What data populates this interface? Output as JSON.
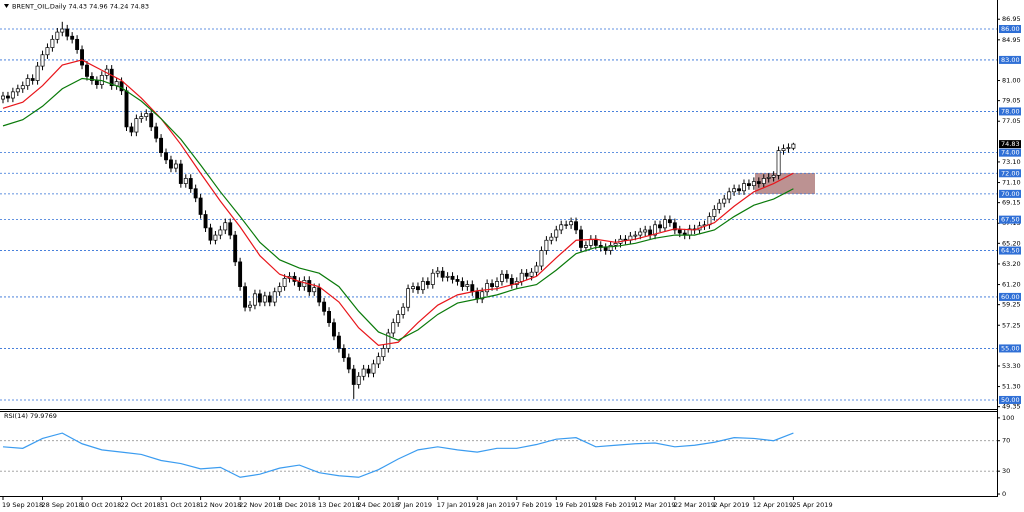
{
  "chart_data": [
    {
      "type": "candlestick",
      "title": "BRENT_OIL,Daily  74.43 74.96 74.24 74.83",
      "categories": [
        "19 Sep 2018",
        null,
        null,
        null,
        null,
        null,
        null,
        null,
        "28 Sep 2018",
        null,
        null,
        null,
        null,
        null,
        null,
        null,
        "10 Oct 2018",
        null,
        null,
        null,
        null,
        null,
        null,
        null,
        "22 Oct 2018",
        null,
        null,
        null,
        null,
        null,
        null,
        null,
        "31 Oct 2018",
        null,
        null,
        null,
        null,
        null,
        null,
        null,
        "12 Nov 2018",
        null,
        null,
        null,
        null,
        null,
        null,
        null,
        "22 Nov 2018",
        null,
        null,
        null,
        null,
        null,
        null,
        null,
        "3 Dec 2018",
        null,
        null,
        null,
        null,
        null,
        null,
        null,
        "13 Dec 2018",
        null,
        null,
        null,
        null,
        null,
        null,
        null,
        "24 Dec 2018",
        null,
        null,
        null,
        null,
        null,
        null,
        null,
        "7 Jan 2019",
        null,
        null,
        null,
        null,
        null,
        null,
        null,
        "17 Jan 2019",
        null,
        null,
        null,
        null,
        null,
        null,
        null,
        "28 Jan 2019",
        null,
        null,
        null,
        null,
        null,
        null,
        null,
        "7 Feb 2019",
        null,
        null,
        null,
        null,
        null,
        null,
        null,
        "19 Feb 2019",
        null,
        null,
        null,
        null,
        null,
        null,
        null,
        "28 Feb 2019",
        null,
        null,
        null,
        null,
        null,
        null,
        null,
        "12 Mar 2019",
        null,
        null,
        null,
        null,
        null,
        null,
        null,
        "22 Mar 2019",
        null,
        null,
        null,
        null,
        null,
        null,
        null,
        "2 Apr 2019",
        null,
        null,
        null,
        null,
        null,
        null,
        null,
        "12 Apr 2019",
        null,
        null,
        null,
        null,
        null,
        null,
        null,
        "25 Apr 2019"
      ],
      "open": [
        79.2,
        79.5,
        79.3,
        79.9,
        80.2,
        80.5,
        81.2,
        81.0,
        82.4,
        83.5,
        84.2,
        85.0,
        85.7,
        86.0,
        85.3,
        85.0,
        84.0,
        82.5,
        81.4,
        81.0,
        80.6,
        81.5,
        82.1,
        80.5,
        80.9,
        80.0,
        76.5,
        76.0,
        77.3,
        77.5,
        77.8,
        76.5,
        75.4,
        74.0,
        73.3,
        72.5,
        72.9,
        71.0,
        71.5,
        70.5,
        69.6,
        68.0,
        66.7,
        65.5,
        66.0,
        66.5,
        67.2,
        66.0,
        63.4,
        61.0,
        59.0,
        59.2,
        60.3,
        59.5,
        60.1,
        59.5,
        60.5,
        61.0,
        61.8,
        62.0,
        61.5,
        61.0,
        61.6,
        60.5,
        60.9,
        59.5,
        58.6,
        57.5,
        56.2,
        55.0,
        54.1,
        53.0,
        51.5,
        52.3,
        53.0,
        52.6,
        53.5,
        54.2,
        55.0,
        56.5,
        57.5,
        58.3,
        59.0,
        60.8,
        61.0,
        60.7,
        61.5,
        61.2,
        62.3,
        62.5,
        61.9,
        62.0,
        61.7,
        61.5,
        61.0,
        61.2,
        60.5,
        59.8,
        60.5,
        61.3,
        61.0,
        61.5,
        62.2,
        61.8,
        61.2,
        61.5,
        62.3,
        62.0,
        62.4,
        63.0,
        64.5,
        65.5,
        65.8,
        66.5,
        67.0,
        67.0,
        67.3,
        66.5,
        64.8,
        65.0,
        65.6,
        65.0,
        64.8,
        64.5,
        65.0,
        65.2,
        65.6,
        65.5,
        65.9,
        66.0,
        66.3,
        66.5,
        66.0,
        67.0,
        66.7,
        67.5,
        67.2,
        66.5,
        66.2,
        66.0,
        66.6,
        66.5,
        66.9,
        67.0,
        67.8,
        68.5,
        69.1,
        69.5,
        70.2,
        70.5,
        70.3,
        71.0,
        70.8,
        71.2,
        71.0,
        71.5,
        71.6,
        71.8,
        74.2,
        74.4,
        74.43
      ],
      "high": [
        79.9,
        79.9,
        80.3,
        80.6,
        80.9,
        81.6,
        81.6,
        82.8,
        83.9,
        84.6,
        85.4,
        86.1,
        86.7,
        86.4,
        85.7,
        85.4,
        84.4,
        82.9,
        81.8,
        81.4,
        81.9,
        82.5,
        82.5,
        81.3,
        81.3,
        80.4,
        76.9,
        77.7,
        77.9,
        78.2,
        78.2,
        76.9,
        75.8,
        74.4,
        73.7,
        73.3,
        73.3,
        71.9,
        71.9,
        70.9,
        70.0,
        68.4,
        67.1,
        66.4,
        66.9,
        67.6,
        67.6,
        66.4,
        63.8,
        61.4,
        59.6,
        60.7,
        60.7,
        60.5,
        60.5,
        60.9,
        61.4,
        62.2,
        62.4,
        62.4,
        61.9,
        62.0,
        62.0,
        61.3,
        61.3,
        59.9,
        59.0,
        57.9,
        56.6,
        55.4,
        54.5,
        53.4,
        52.7,
        53.4,
        53.4,
        53.9,
        54.6,
        55.4,
        56.9,
        57.9,
        58.7,
        59.4,
        61.2,
        61.4,
        61.4,
        61.9,
        61.9,
        62.7,
        62.9,
        62.9,
        62.4,
        62.4,
        62.1,
        61.9,
        61.6,
        61.6,
        60.9,
        60.9,
        61.7,
        61.7,
        61.9,
        62.6,
        62.6,
        62.2,
        61.9,
        62.7,
        62.7,
        62.8,
        63.4,
        64.9,
        65.9,
        66.2,
        66.9,
        67.4,
        67.4,
        67.7,
        67.7,
        66.9,
        65.4,
        66.0,
        66.0,
        65.4,
        65.2,
        65.4,
        65.6,
        66.0,
        66.0,
        66.3,
        66.4,
        66.7,
        66.9,
        66.9,
        67.4,
        67.4,
        67.9,
        67.9,
        67.6,
        66.9,
        66.6,
        67.0,
        67.0,
        67.3,
        67.4,
        68.2,
        68.9,
        69.5,
        69.9,
        70.6,
        70.9,
        70.9,
        71.4,
        71.4,
        71.6,
        71.6,
        71.9,
        72.0,
        72.2,
        74.6,
        74.8,
        74.9,
        74.96
      ],
      "low": [
        78.8,
        78.9,
        78.9,
        79.5,
        79.8,
        80.1,
        80.6,
        80.6,
        82.0,
        83.1,
        83.8,
        84.6,
        85.3,
        84.9,
        84.6,
        83.6,
        82.1,
        81.0,
        80.6,
        80.2,
        80.2,
        81.1,
        80.1,
        80.1,
        79.6,
        76.1,
        75.6,
        75.6,
        76.9,
        77.1,
        76.1,
        75.0,
        73.6,
        72.9,
        72.1,
        72.1,
        70.6,
        70.6,
        70.1,
        69.2,
        67.6,
        66.3,
        65.1,
        65.1,
        65.6,
        66.1,
        65.6,
        63.0,
        60.6,
        58.6,
        58.6,
        58.8,
        59.1,
        59.1,
        59.1,
        59.1,
        60.1,
        60.6,
        61.4,
        61.1,
        60.6,
        60.6,
        60.1,
        60.1,
        59.1,
        58.2,
        57.1,
        55.8,
        54.6,
        53.7,
        52.6,
        50.1,
        51.1,
        51.9,
        52.2,
        52.2,
        53.1,
        53.8,
        54.6,
        56.1,
        57.1,
        57.9,
        58.6,
        60.4,
        60.3,
        60.3,
        60.8,
        60.8,
        61.9,
        61.5,
        61.5,
        61.3,
        61.1,
        60.6,
        60.6,
        60.1,
        59.4,
        59.4,
        60.1,
        60.6,
        60.6,
        61.1,
        61.4,
        60.8,
        60.8,
        61.1,
        61.6,
        61.6,
        62.0,
        62.6,
        64.1,
        65.1,
        65.4,
        66.1,
        66.6,
        66.6,
        66.1,
        64.4,
        64.4,
        64.6,
        64.6,
        64.4,
        64.1,
        64.1,
        64.6,
        64.8,
        65.1,
        65.1,
        65.5,
        65.6,
        65.9,
        65.6,
        65.6,
        66.3,
        66.3,
        66.8,
        66.1,
        65.8,
        65.6,
        65.6,
        66.1,
        66.1,
        66.5,
        66.6,
        67.4,
        68.1,
        68.7,
        69.1,
        69.8,
        69.9,
        69.9,
        70.4,
        70.4,
        70.6,
        70.6,
        71.1,
        71.2,
        71.4,
        73.8,
        74.0,
        74.24
      ],
      "close": [
        79.5,
        79.3,
        79.9,
        80.2,
        80.5,
        81.2,
        81.0,
        82.4,
        83.5,
        84.2,
        85.0,
        85.7,
        86.0,
        85.3,
        85.0,
        84.0,
        82.5,
        81.4,
        81.0,
        80.6,
        81.5,
        82.1,
        80.5,
        80.9,
        80.0,
        76.5,
        76.0,
        77.3,
        77.5,
        77.8,
        76.5,
        75.4,
        74.0,
        73.3,
        72.5,
        72.9,
        71.0,
        71.5,
        70.5,
        69.6,
        68.0,
        66.7,
        65.5,
        66.0,
        66.5,
        67.2,
        66.0,
        63.4,
        61.0,
        59.0,
        59.2,
        60.3,
        59.5,
        60.1,
        59.5,
        60.5,
        61.0,
        61.8,
        62.0,
        61.5,
        61.0,
        61.6,
        60.5,
        60.9,
        59.5,
        58.6,
        57.5,
        56.2,
        55.0,
        54.1,
        53.0,
        51.5,
        52.3,
        53.0,
        52.6,
        53.5,
        54.2,
        55.0,
        56.5,
        57.5,
        58.3,
        59.0,
        60.8,
        61.0,
        60.7,
        61.5,
        61.2,
        62.3,
        62.5,
        61.9,
        62.0,
        61.7,
        61.5,
        61.0,
        61.2,
        60.5,
        59.8,
        60.5,
        61.3,
        61.0,
        61.5,
        62.2,
        61.8,
        61.2,
        61.5,
        62.3,
        62.0,
        62.4,
        63.0,
        64.5,
        65.5,
        65.8,
        66.5,
        67.0,
        67.0,
        67.3,
        66.5,
        64.8,
        65.0,
        65.6,
        65.0,
        64.8,
        64.5,
        65.0,
        65.2,
        65.6,
        65.5,
        65.9,
        66.0,
        66.3,
        66.5,
        66.0,
        67.0,
        66.7,
        67.5,
        67.2,
        66.5,
        66.2,
        66.0,
        66.6,
        66.5,
        66.9,
        67.0,
        67.8,
        68.5,
        69.1,
        69.5,
        70.2,
        70.5,
        70.3,
        71.0,
        70.8,
        71.2,
        71.0,
        71.5,
        71.6,
        71.8,
        74.2,
        74.4,
        74.5,
        74.83
      ],
      "up_color": "#ffffff",
      "down_color": "#000000",
      "series": [
        {
          "color": "#e8161b",
          "x": [
            0,
            4,
            8,
            12,
            16,
            20,
            24,
            28,
            32,
            36,
            40,
            44,
            48,
            52,
            56,
            60,
            64,
            68,
            72,
            76,
            80,
            84,
            88,
            92,
            96,
            100,
            104,
            108,
            112,
            116,
            120,
            124,
            128,
            132,
            136,
            140,
            144,
            148,
            152,
            156,
            160
          ],
          "values": [
            78.3,
            78.9,
            80.5,
            82.5,
            83.0,
            82.0,
            81.0,
            79.3,
            77.3,
            74.8,
            72.0,
            69.3,
            66.8,
            64.0,
            62.2,
            61.5,
            61.0,
            59.5,
            57.0,
            55.3,
            55.6,
            57.5,
            59.2,
            60.2,
            60.6,
            60.8,
            61.3,
            62.0,
            63.8,
            65.5,
            65.6,
            65.3,
            65.6,
            66.1,
            66.6,
            66.5,
            67.2,
            68.8,
            70.2,
            71.0,
            72.0
          ]
        },
        {
          "color": "#0a7a0a",
          "x": [
            0,
            4,
            8,
            12,
            16,
            20,
            24,
            28,
            32,
            36,
            40,
            44,
            48,
            52,
            56,
            60,
            64,
            68,
            72,
            76,
            80,
            84,
            88,
            92,
            96,
            100,
            104,
            108,
            112,
            116,
            120,
            124,
            128,
            132,
            136,
            140,
            144,
            148,
            152,
            156,
            160
          ],
          "values": [
            76.6,
            77.2,
            78.5,
            80.2,
            81.2,
            81.0,
            80.3,
            79.0,
            77.3,
            75.3,
            72.8,
            70.2,
            67.8,
            65.3,
            63.6,
            62.8,
            62.3,
            61.0,
            58.6,
            56.6,
            55.8,
            56.8,
            58.3,
            59.4,
            59.8,
            60.2,
            60.8,
            61.2,
            62.6,
            64.2,
            64.8,
            64.9,
            65.2,
            65.7,
            66.0,
            66.0,
            66.5,
            67.8,
            68.9,
            69.5,
            70.5
          ]
        }
      ],
      "ylim": [
        49.22,
        88.33
      ],
      "yticks": [
        86.95,
        84.95,
        {
          "value": 81,
          "label": "81.00"
        },
        79.05,
        77.05,
        {
          "value": 73.1,
          "label": "73.10"
        },
        {
          "value": 71.1,
          "label": "71.10"
        },
        69.15,
        67.15,
        {
          "value": 65.2,
          "label": "65.20"
        },
        {
          "value": 63.2,
          "label": "63.20"
        },
        {
          "value": 61.2,
          "label": "61.20"
        },
        59.25,
        57.25,
        {
          "value": 53.3,
          "label": "53.30"
        },
        {
          "value": 51.3,
          "label": "51.30"
        },
        49.35
      ],
      "levels": [
        {
          "value": 86,
          "label": "86.00"
        },
        {
          "value": 83,
          "label": "83.00"
        },
        {
          "value": 78,
          "label": "78.00"
        },
        {
          "value": 74,
          "label": "74.00"
        },
        {
          "value": 72,
          "label": "72.00"
        },
        {
          "value": 70,
          "label": "70.00"
        },
        {
          "value": 67.5,
          "label": "67.50"
        },
        {
          "value": 64.5,
          "label": "64.50"
        },
        {
          "value": 60,
          "label": "60.00"
        },
        {
          "value": 55,
          "label": "55.00"
        },
        {
          "value": 50,
          "label": "50.00"
        }
      ],
      "level_color": "#2f6fd6",
      "last_price": {
        "value": 74.83,
        "label": "74.83"
      }
    },
    {
      "type": "line",
      "title": "RSI(14) 79.9769",
      "color": "#3b9cf0",
      "x": [
        0,
        4,
        8,
        12,
        16,
        20,
        24,
        28,
        32,
        36,
        40,
        44,
        48,
        52,
        56,
        60,
        64,
        68,
        72,
        76,
        80,
        84,
        88,
        92,
        96,
        100,
        104,
        108,
        112,
        116,
        120,
        124,
        128,
        132,
        136,
        140,
        144,
        148,
        152,
        156,
        160
      ],
      "values": [
        62,
        60,
        73,
        80,
        66,
        58,
        55,
        52,
        44,
        40,
        33,
        35,
        22,
        26,
        34,
        38,
        28,
        24,
        22,
        32,
        46,
        58,
        62,
        58,
        55,
        60,
        60,
        65,
        72,
        74,
        62,
        64,
        66,
        67,
        62,
        64,
        68,
        74,
        73,
        70,
        79.9769
      ],
      "ylim": [
        -2.6,
        107.7
      ],
      "yticks": [
        100,
        70,
        30,
        0
      ],
      "levels": [
        70,
        30
      ]
    }
  ]
}
